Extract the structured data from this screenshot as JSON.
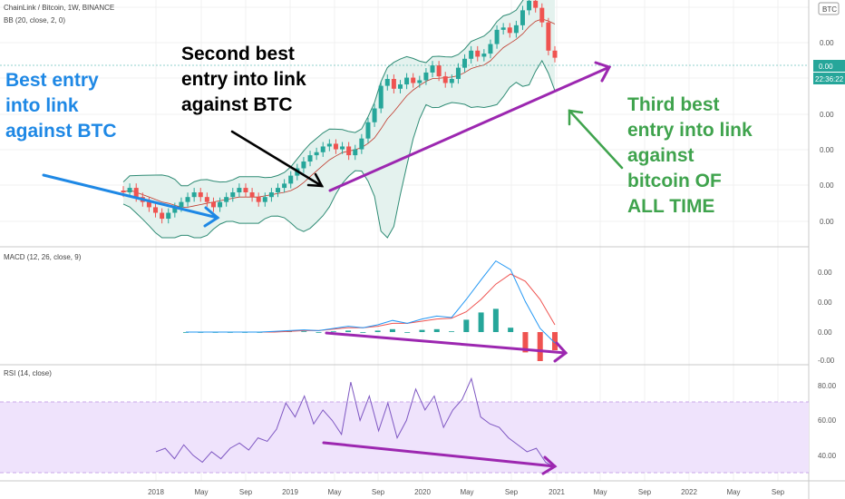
{
  "header": {
    "symbol_line": "ChainLink / Bitcoin, 1W, BINANCE",
    "bb_label": "BB (20, close, 2, 0)",
    "currency_badge": "BTC",
    "top_price": "0.00",
    "current_price": "0.00",
    "countdown": "22:36:22"
  },
  "macd_label": "MACD (12, 26, close, 9)",
  "rsi_label": "RSI (14, close)",
  "annotations": {
    "best_entry": [
      "Best entry",
      "into link",
      "against BTC"
    ],
    "second_entry": [
      "Second best",
      "entry into link",
      "against BTC"
    ],
    "third_entry": [
      "Third best",
      "entry into link",
      "against",
      "bitcoin OF",
      "ALL TIME"
    ]
  },
  "colors": {
    "up": "#26a69a",
    "down": "#ef5350",
    "bb_fill": "#e4f2ee",
    "bb_line": "#2e8b74",
    "macd_line": "#2196f3",
    "signal_line": "#ef5350",
    "rsi_line": "#7e57c2",
    "rsi_band": "#efe3fc",
    "blue_anno": "#1e88e5",
    "black_anno": "#000000",
    "purple_anno": "#9c27b0",
    "green_anno": "#3fa34d"
  },
  "chart_data": [
    {
      "type": "candlestick",
      "title": "ChainLink / Bitcoin, 1W, BINANCE",
      "x_tick_labels": [
        "2018",
        "May",
        "Sep",
        "2019",
        "May",
        "Sep",
        "2020",
        "May",
        "Sep",
        "2021",
        "May",
        "Sep",
        "2022",
        "May",
        "Sep"
      ],
      "y_tick_labels": [
        "0.00",
        "0.00",
        "0.00",
        "0.00",
        "0.00",
        "0.00",
        "0.00"
      ],
      "series": [
        {
          "values": [
            2.0,
            2.1,
            1.9,
            1.8,
            1.7,
            1.6,
            1.5,
            1.6,
            1.7,
            1.8,
            1.9,
            2.0,
            1.9,
            1.8,
            1.7,
            1.8,
            1.9,
            2.0,
            2.1,
            2.0,
            1.9,
            1.8,
            1.9,
            2.0,
            2.1,
            2.2,
            2.4,
            2.6,
            2.8,
            3.0,
            3.1,
            3.3,
            3.4,
            3.2,
            3.3,
            3.0,
            3.2,
            3.6,
            4.3,
            5.0,
            6.4,
            6.9,
            6.2,
            6.5,
            7.0,
            6.6,
            6.8,
            7.4,
            8.0,
            7.1,
            6.6,
            6.9,
            7.8,
            8.6,
            9.4,
            8.8,
            9.1,
            10.1,
            11.8,
            12.1,
            11.4,
            12.4,
            14.6,
            16.2,
            15.0,
            12.8,
            9.4,
            8.7
          ]
        }
      ]
    },
    {
      "type": "line",
      "title": "MACD (12, 26, close, 9)",
      "y_tick_labels": [
        "0.00",
        "0.00",
        "0.00",
        "-0.00"
      ],
      "series": [
        {
          "values": [
            0.0,
            0.0,
            0.0,
            0.0,
            0.0,
            0.0,
            0.01,
            0.02,
            0.03,
            0.02,
            0.05,
            0.08,
            0.06,
            0.1,
            0.16,
            0.12,
            0.18,
            0.22,
            0.2,
            0.45,
            0.72,
            0.98,
            0.86,
            0.42,
            0.05,
            -0.15
          ]
        },
        {
          "values": [
            0.0,
            0.0,
            0.0,
            0.0,
            0.0,
            0.0,
            0.0,
            0.01,
            0.02,
            0.02,
            0.04,
            0.06,
            0.06,
            0.08,
            0.12,
            0.12,
            0.15,
            0.18,
            0.19,
            0.28,
            0.45,
            0.66,
            0.8,
            0.7,
            0.45,
            0.1
          ]
        },
        {
          "values": [
            0.0,
            0.0,
            0.0,
            0.0,
            0.0,
            0.0,
            0.01,
            0.01,
            0.01,
            0.0,
            0.01,
            0.02,
            0.0,
            0.02,
            0.04,
            0.0,
            0.03,
            0.04,
            0.01,
            0.17,
            0.27,
            0.32,
            0.06,
            -0.28,
            -0.4,
            -0.25
          ]
        }
      ]
    },
    {
      "type": "line",
      "title": "RSI (14, close)",
      "y_tick_labels": [
        "80.00",
        "60.00",
        "40.00"
      ],
      "series": [
        {
          "values": [
            42,
            44,
            38,
            46,
            40,
            36,
            42,
            38,
            44,
            47,
            43,
            50,
            48,
            55,
            70,
            62,
            74,
            58,
            66,
            60,
            52,
            82,
            60,
            74,
            54,
            70,
            50,
            60,
            78,
            66,
            74,
            56,
            66,
            72,
            84,
            62,
            58,
            56,
            50,
            46,
            42,
            44,
            36,
            33
          ]
        }
      ]
    }
  ]
}
